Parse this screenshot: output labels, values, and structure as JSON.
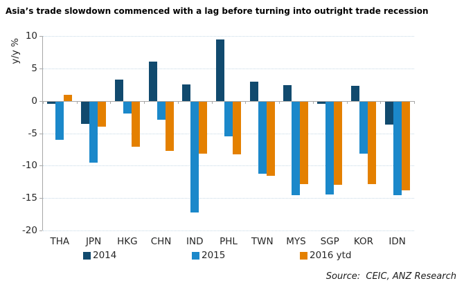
{
  "title": "Asia’s trade slowdown commenced with a lag before turning into outright trade recession",
  "source": "Source:  CEIC, ANZ Research",
  "colors": {
    "series_2014": "#114a6e",
    "series_2015": "#1b88ca",
    "series_2016": "#e48000",
    "gridline": "#c4d8e6",
    "axis_line": "#a6a6a6",
    "text": "#262626"
  },
  "chart_data": {
    "type": "bar",
    "title": "Asia’s trade slowdown commenced with a lag before turning into outright trade recession",
    "xlabel": "",
    "ylabel": "y/y %",
    "ylim": [
      -20,
      10
    ],
    "ytick_step": 5,
    "yticks": [
      10,
      5,
      0,
      -5,
      -10,
      -15,
      -20
    ],
    "grid": true,
    "legend_position": "bottom",
    "categories": [
      "THA",
      "JPN",
      "HKG",
      "CHN",
      "IND",
      "PHL",
      "TWN",
      "MYS",
      "SGP",
      "KOR",
      "IDN"
    ],
    "series": [
      {
        "name": "2014",
        "color": "#114a6e",
        "values": [
          -0.5,
          -3.6,
          3.3,
          6.1,
          2.5,
          9.5,
          3.0,
          2.4,
          -0.5,
          2.3,
          -3.7
        ]
      },
      {
        "name": "2015",
        "color": "#1b88ca",
        "values": [
          -6.0,
          -9.5,
          -2.0,
          -2.9,
          -17.2,
          -5.5,
          -11.2,
          -14.6,
          -14.4,
          -8.2,
          -14.6
        ]
      },
      {
        "name": "2016 ytd",
        "color": "#e48000",
        "values": [
          0.9,
          -4.0,
          -7.1,
          -7.7,
          -8.1,
          -8.3,
          -11.6,
          -12.8,
          -13.0,
          -12.9,
          -13.8
        ]
      }
    ]
  }
}
